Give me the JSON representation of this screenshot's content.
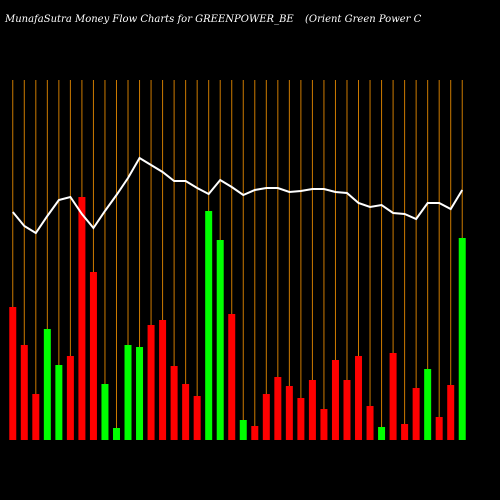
{
  "chart_data": {
    "type": "bar",
    "title": "MunafaSutra  Money Flow  Charts for GREENPOWER_BE",
    "subtitle": "(Orient Green  Power C",
    "categories": [
      null,
      null,
      null,
      null,
      null,
      null,
      null,
      null,
      null,
      null,
      null,
      null,
      null,
      null,
      null,
      null,
      null,
      null,
      null,
      null,
      null,
      null,
      null,
      null,
      null,
      null,
      null,
      null,
      null,
      null,
      null,
      null,
      null,
      null,
      null,
      null,
      null,
      null,
      null,
      null
    ],
    "series": [
      {
        "type": "bar",
        "values": [
          133,
          95,
          46,
          111,
          75,
          84,
          243,
          168,
          56,
          12,
          95,
          93,
          115,
          120,
          74,
          56,
          44,
          229,
          200,
          126,
          20,
          14,
          46,
          63,
          54,
          42,
          60,
          31,
          80,
          60,
          84,
          34,
          13,
          87,
          16,
          52,
          71,
          23,
          55,
          202
        ],
        "colors": [
          "#ff0000",
          "#ff0000",
          "#ff0000",
          "#00ff00",
          "#00ff00",
          "#ff0000",
          "#ff0000",
          "#ff0000",
          "#00ff00",
          "#00ff00",
          "#00ff00",
          "#00ff00",
          "#ff0000",
          "#ff0000",
          "#ff0000",
          "#ff0000",
          "#ff0000",
          "#00ff00",
          "#00ff00",
          "#ff0000",
          "#00ff00",
          "#ff0000",
          "#ff0000",
          "#ff0000",
          "#ff0000",
          "#ff0000",
          "#ff0000",
          "#ff0000",
          "#ff0000",
          "#ff0000",
          "#ff0000",
          "#ff0000",
          "#00ff00",
          "#ff0000",
          "#ff0000",
          "#ff0000",
          "#00ff00",
          "#ff0000",
          "#ff0000",
          "#00ff00"
        ]
      },
      {
        "type": "line",
        "color": "#ffffff",
        "values": [
          228,
          214,
          207,
          224,
          240,
          243,
          226,
          212,
          229,
          245,
          262,
          282,
          275,
          268,
          259,
          259,
          252,
          246,
          260,
          253,
          245,
          250,
          252,
          252,
          248,
          249,
          251,
          251,
          248,
          247,
          237,
          233,
          235,
          227,
          226,
          221,
          237,
          237,
          231,
          250
        ]
      }
    ],
    "ylim": [
      0,
      360
    ],
    "gridline_color": "#cc7a00"
  }
}
